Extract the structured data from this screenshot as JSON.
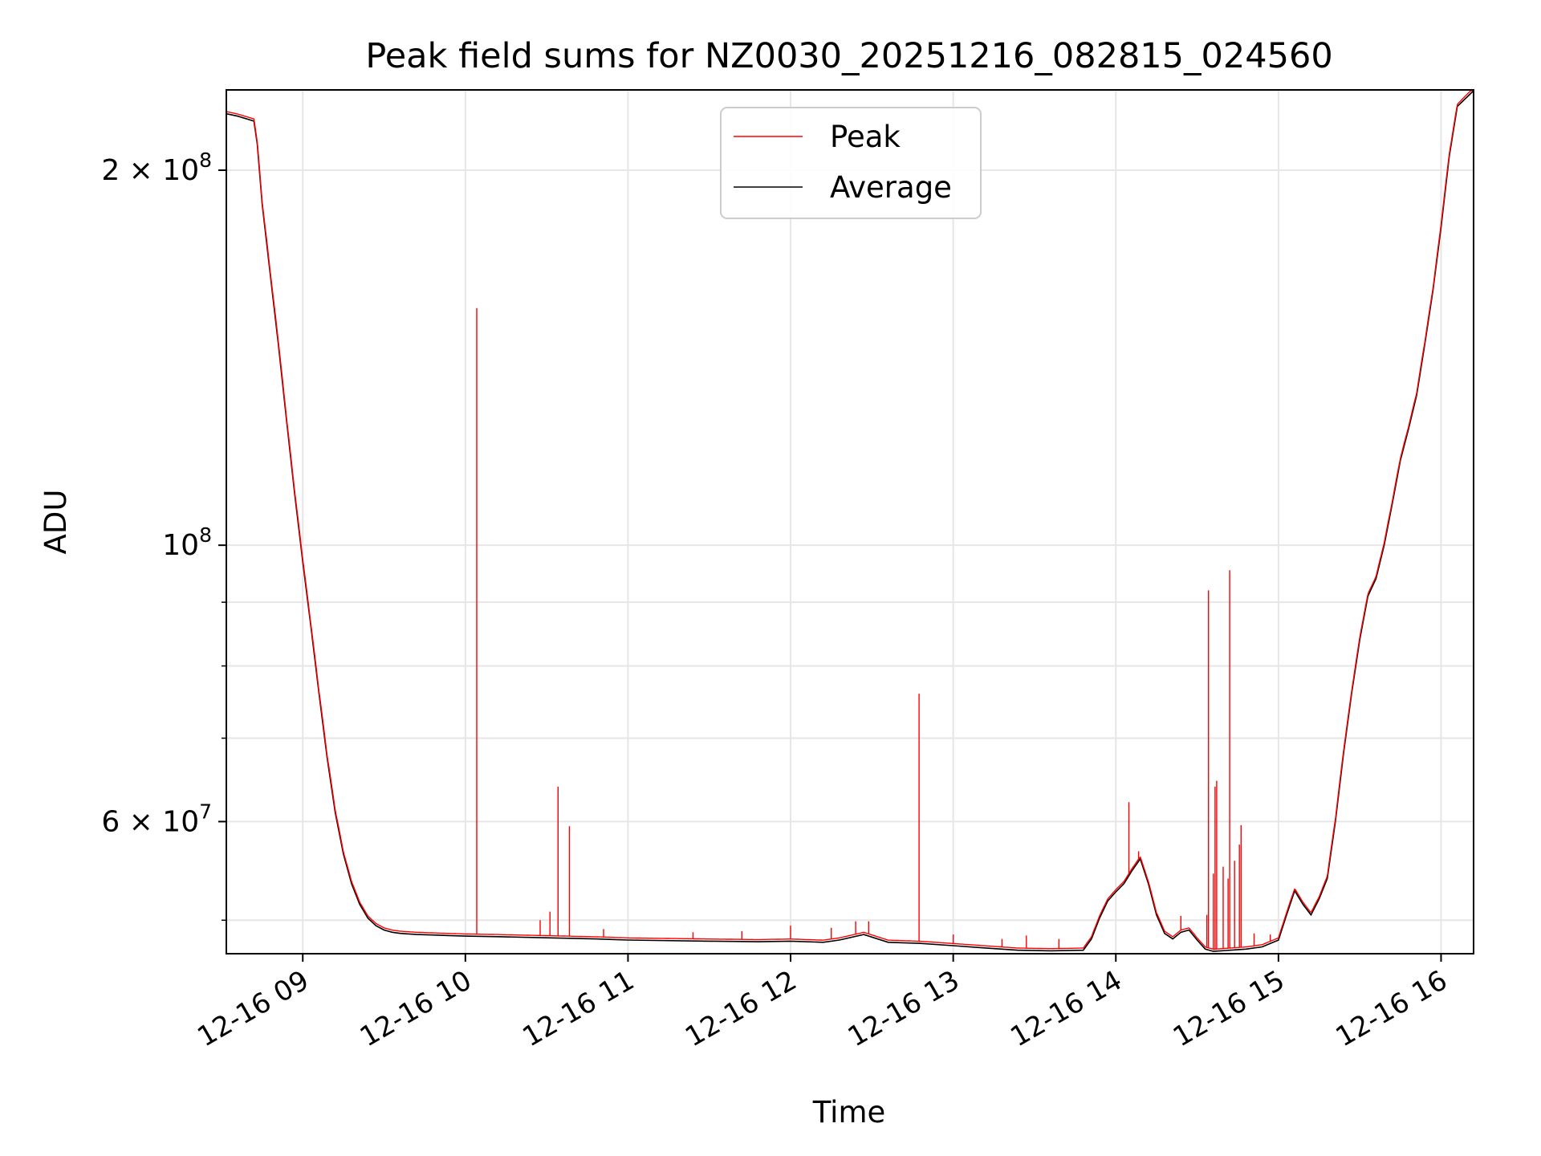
{
  "chart_data": {
    "type": "line",
    "title": "Peak field sums for NZ0030_20251216_082815_024560",
    "xlabel": "Time",
    "ylabel": "ADU",
    "yscale": "log",
    "xlim": [
      8.53,
      16.2
    ],
    "ylim": [
      47000000,
      232000000
    ],
    "grid": true,
    "legend_position": "top-center",
    "x_ticks": [
      {
        "value": 9,
        "label": "12-16 09"
      },
      {
        "value": 10,
        "label": "12-16 10"
      },
      {
        "value": 11,
        "label": "12-16 11"
      },
      {
        "value": 12,
        "label": "12-16 12"
      },
      {
        "value": 13,
        "label": "12-16 13"
      },
      {
        "value": 14,
        "label": "12-16 14"
      },
      {
        "value": 15,
        "label": "12-16 15"
      },
      {
        "value": 16,
        "label": "12-16 16"
      }
    ],
    "y_major_ticks": [
      {
        "value": 60000000,
        "base": "6 × 10",
        "exp": "7"
      },
      {
        "value": 100000000,
        "base": "10",
        "exp": "8"
      },
      {
        "value": 200000000,
        "base": "2 × 10",
        "exp": "8"
      }
    ],
    "y_minor_ticks": [
      50000000,
      70000000,
      80000000,
      90000000
    ],
    "series": [
      {
        "name": "Average",
        "color": "#000000",
        "x": [
          8.53,
          8.6,
          8.7,
          8.72,
          8.75,
          8.8,
          8.85,
          8.9,
          8.95,
          9.0,
          9.05,
          9.1,
          9.15,
          9.2,
          9.25,
          9.3,
          9.35,
          9.4,
          9.45,
          9.5,
          9.55,
          9.6,
          9.7,
          9.8,
          9.9,
          10.0,
          10.2,
          10.5,
          10.8,
          11.0,
          11.5,
          11.8,
          12.0,
          12.2,
          12.3,
          12.45,
          12.6,
          12.8,
          13.0,
          13.2,
          13.4,
          13.6,
          13.8,
          13.85,
          13.9,
          13.95,
          14.0,
          14.05,
          14.1,
          14.15,
          14.2,
          14.25,
          14.3,
          14.35,
          14.4,
          14.45,
          14.5,
          14.55,
          14.6,
          14.7,
          14.8,
          14.9,
          15.0,
          15.05,
          15.1,
          15.15,
          15.2,
          15.25,
          15.3,
          15.35,
          15.4,
          15.45,
          15.5,
          15.55,
          15.6,
          15.65,
          15.7,
          15.75,
          15.8,
          15.85,
          15.9,
          15.95,
          16.0,
          16.05,
          16.1,
          16.2
        ],
        "y": [
          222000000,
          221000000,
          219000000,
          210000000,
          188000000,
          165000000,
          145000000,
          126000000,
          110000000,
          97000000,
          86000000,
          76000000,
          67500000,
          61000000,
          56500000,
          53500000,
          51500000,
          50200000,
          49500000,
          49100000,
          48900000,
          48800000,
          48700000,
          48650000,
          48600000,
          48550000,
          48500000,
          48400000,
          48300000,
          48200000,
          48100000,
          48050000,
          48100000,
          48000000,
          48200000,
          48700000,
          48000000,
          47900000,
          47700000,
          47500000,
          47300000,
          47250000,
          47300000,
          48300000,
          50200000,
          51800000,
          52700000,
          53500000,
          54800000,
          56000000,
          53500000,
          50500000,
          48800000,
          48300000,
          48900000,
          49100000,
          48200000,
          47400000,
          47200000,
          47300000,
          47400000,
          47600000,
          48200000,
          50500000,
          52800000,
          51500000,
          50500000,
          52000000,
          54000000,
          60000000,
          68000000,
          76000000,
          84000000,
          91000000,
          94000000,
          100000000,
          108000000,
          117000000,
          124000000,
          132000000,
          145000000,
          160000000,
          180000000,
          205000000,
          225000000,
          232000000
        ]
      },
      {
        "name": "Peak",
        "color": "#ff0000",
        "spikes": [
          {
            "x": 10.07,
            "y": 155000000
          },
          {
            "x": 10.46,
            "y": 50000000
          },
          {
            "x": 10.52,
            "y": 50800000
          },
          {
            "x": 10.57,
            "y": 64000000
          },
          {
            "x": 10.64,
            "y": 59500000
          },
          {
            "x": 10.85,
            "y": 49200000
          },
          {
            "x": 11.4,
            "y": 48900000
          },
          {
            "x": 11.7,
            "y": 49000000
          },
          {
            "x": 12.0,
            "y": 49500000
          },
          {
            "x": 12.25,
            "y": 49300000
          },
          {
            "x": 12.4,
            "y": 49900000
          },
          {
            "x": 12.48,
            "y": 49900000
          },
          {
            "x": 12.79,
            "y": 76000000
          },
          {
            "x": 13.0,
            "y": 48700000
          },
          {
            "x": 13.3,
            "y": 48300000
          },
          {
            "x": 13.45,
            "y": 48600000
          },
          {
            "x": 13.65,
            "y": 48300000
          },
          {
            "x": 14.08,
            "y": 62200000
          },
          {
            "x": 14.14,
            "y": 56800000
          },
          {
            "x": 14.4,
            "y": 50400000
          },
          {
            "x": 14.56,
            "y": 50500000
          },
          {
            "x": 14.57,
            "y": 92000000
          },
          {
            "x": 14.6,
            "y": 54500000
          },
          {
            "x": 14.61,
            "y": 64000000
          },
          {
            "x": 14.62,
            "y": 64700000
          },
          {
            "x": 14.66,
            "y": 55200000
          },
          {
            "x": 14.69,
            "y": 54000000
          },
          {
            "x": 14.7,
            "y": 95500000
          },
          {
            "x": 14.73,
            "y": 55800000
          },
          {
            "x": 14.76,
            "y": 57500000
          },
          {
            "x": 14.77,
            "y": 59600000
          },
          {
            "x": 14.85,
            "y": 48800000
          },
          {
            "x": 14.95,
            "y": 48700000
          }
        ]
      }
    ]
  }
}
